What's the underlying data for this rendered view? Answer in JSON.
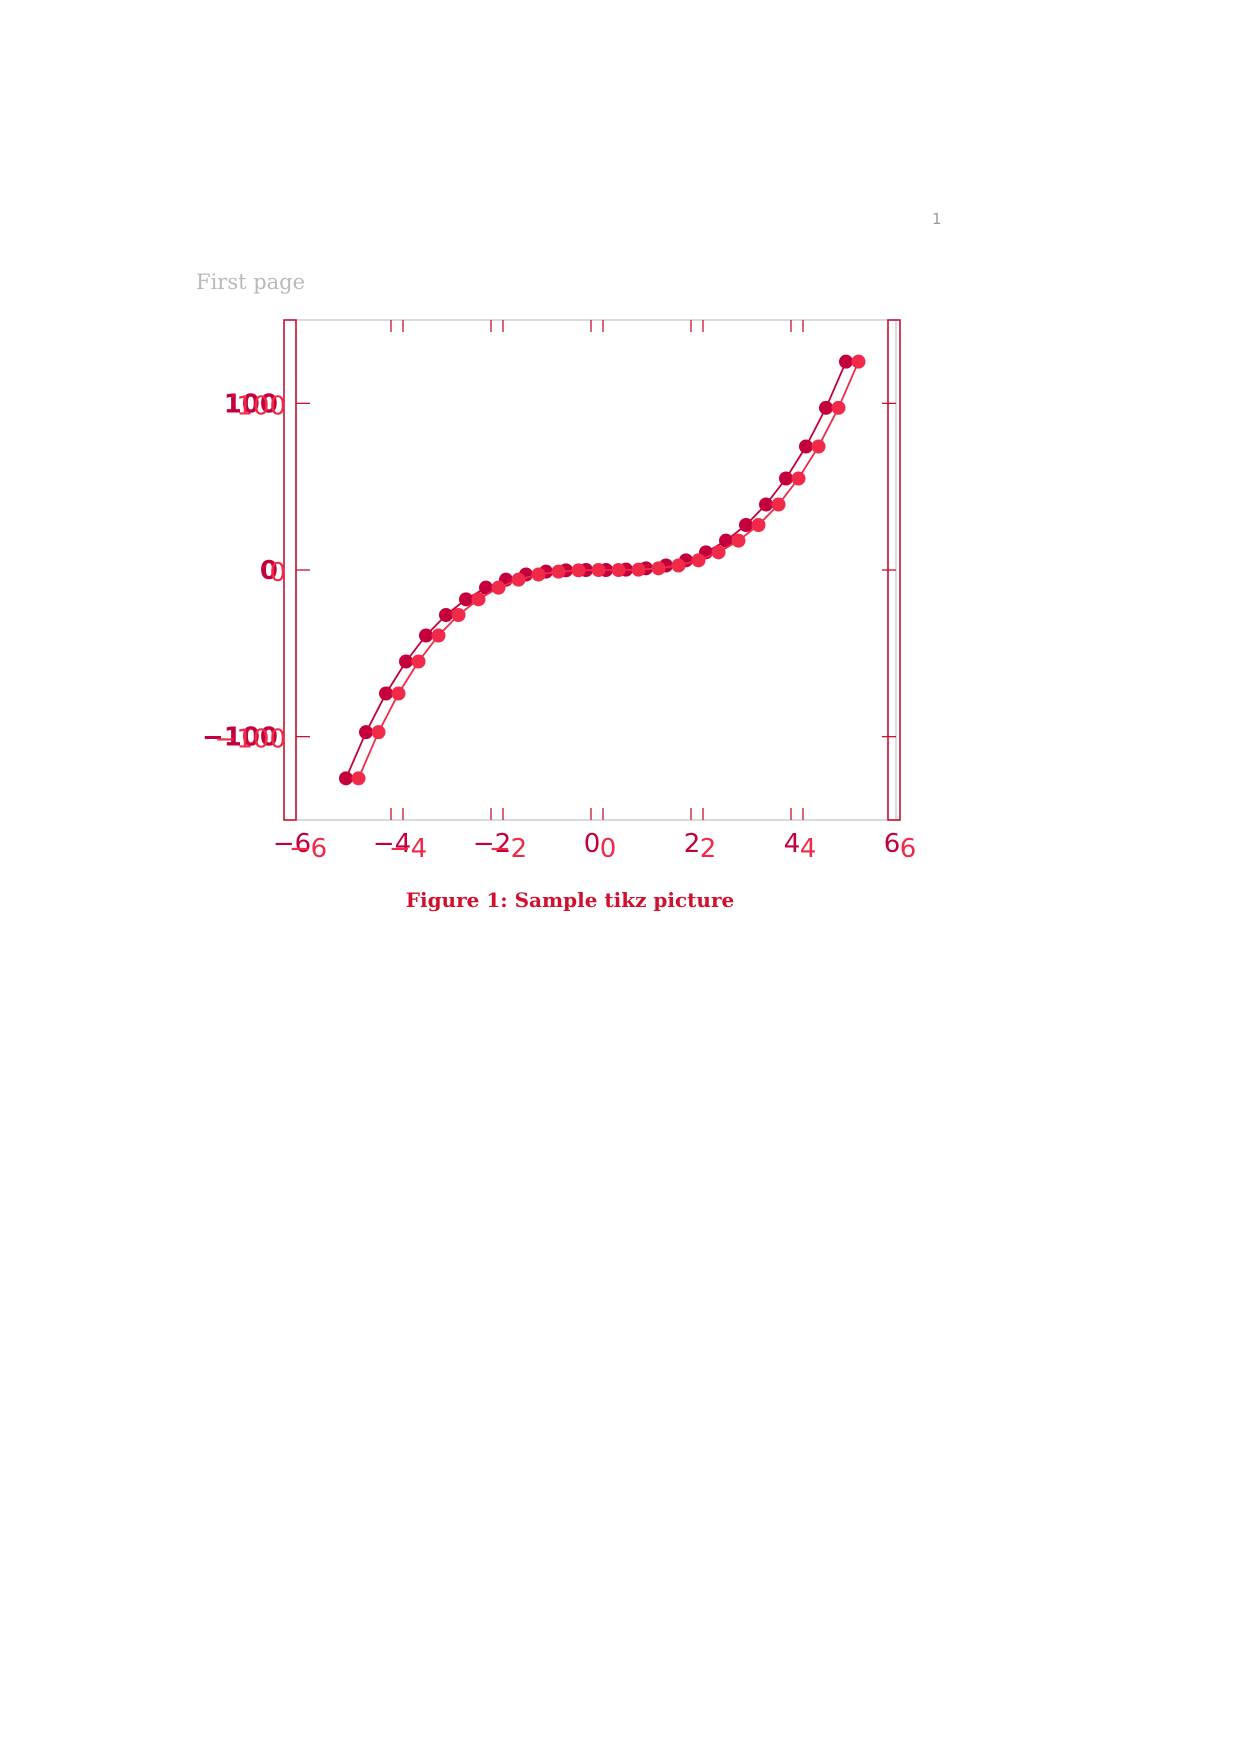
{
  "page": {
    "number": "1",
    "header": "First page",
    "caption": "Figure 1: Sample tikz picture"
  },
  "colors": {
    "axis": "#c8102e",
    "frame": "#c0c0c0",
    "series_a": "#c4003c",
    "series_b": "#f02a48"
  },
  "chart_data": {
    "type": "line",
    "title": "",
    "xlabel": "",
    "ylabel": "",
    "xlim": [
      -6,
      6
    ],
    "ylim": [
      -150,
      150
    ],
    "xticks": [
      -6,
      -4,
      -2,
      0,
      2,
      4,
      6
    ],
    "xtick_labels": [
      "−6",
      "−4",
      "−2",
      "0",
      "2",
      "4",
      "6"
    ],
    "yticks": [
      -100,
      0,
      100
    ],
    "ytick_labels": [
      "−100",
      "0",
      "100"
    ],
    "series": [
      {
        "x": [
          -5.0,
          -4.6,
          -4.2,
          -3.8,
          -3.4,
          -3.0,
          -2.6,
          -2.2,
          -1.8,
          -1.4,
          -1.0,
          -0.6,
          -0.2,
          0.2,
          0.6,
          1.0,
          1.4,
          1.8,
          2.2,
          2.6,
          3.0,
          3.4,
          3.8,
          4.2,
          4.6,
          5.0
        ],
        "y": [
          -125,
          -97.3,
          -74.1,
          -54.9,
          -39.3,
          -27,
          -17.6,
          -10.6,
          -5.8,
          -2.7,
          -1,
          -0.2,
          0,
          0,
          0.2,
          1,
          2.7,
          5.8,
          10.6,
          17.6,
          27,
          39.3,
          54.9,
          74.1,
          97.3,
          125
        ]
      },
      {
        "x": [
          -4.75,
          -4.35,
          -3.95,
          -3.55,
          -3.15,
          -2.75,
          -2.35,
          -1.95,
          -1.55,
          -1.15,
          -0.75,
          -0.35,
          0.05,
          0.45,
          0.85,
          1.25,
          1.65,
          2.05,
          2.45,
          2.85,
          3.25,
          3.65,
          4.05,
          4.45,
          4.85,
          5.25
        ],
        "y": [
          -125,
          -97.3,
          -74.1,
          -54.9,
          -39.3,
          -27,
          -17.6,
          -10.6,
          -5.8,
          -2.7,
          -1,
          -0.2,
          0,
          0,
          0.2,
          1,
          2.7,
          5.8,
          10.6,
          17.6,
          27,
          39.3,
          54.9,
          74.1,
          97.3,
          125
        ]
      }
    ]
  }
}
